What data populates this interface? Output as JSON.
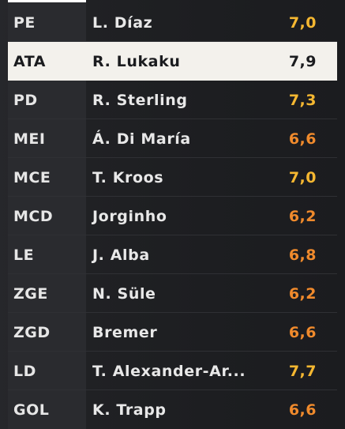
{
  "lineup": {
    "players": [
      {
        "position": "PE",
        "name": "L. Díaz",
        "rating": "7,0",
        "rating_color": "#f5b731"
      },
      {
        "position": "ATA",
        "name": "R. Lukaku",
        "rating": "7,9",
        "rating_color": "#1b1c1f",
        "selected": true
      },
      {
        "position": "PD",
        "name": "R. Sterling",
        "rating": "7,3",
        "rating_color": "#f5b731"
      },
      {
        "position": "MEI",
        "name": "Á. Di María",
        "rating": "6,6",
        "rating_color": "#f08a2c"
      },
      {
        "position": "MCE",
        "name": "T. Kroos",
        "rating": "7,0",
        "rating_color": "#f5b731"
      },
      {
        "position": "MCD",
        "name": "Jorginho",
        "rating": "6,2",
        "rating_color": "#f08a2c"
      },
      {
        "position": "LE",
        "name": "J. Alba",
        "rating": "6,8",
        "rating_color": "#f08a2c"
      },
      {
        "position": "ZGE",
        "name": "N. Süle",
        "rating": "6,2",
        "rating_color": "#f08a2c"
      },
      {
        "position": "ZGD",
        "name": "Bremer",
        "rating": "6,6",
        "rating_color": "#f08a2c"
      },
      {
        "position": "LD",
        "name": "T. Alexander-Ar...",
        "rating": "7,7",
        "rating_color": "#f5b731"
      },
      {
        "position": "GOL",
        "name": "K. Trapp",
        "rating": "6,6",
        "rating_color": "#f08a2c"
      }
    ]
  }
}
